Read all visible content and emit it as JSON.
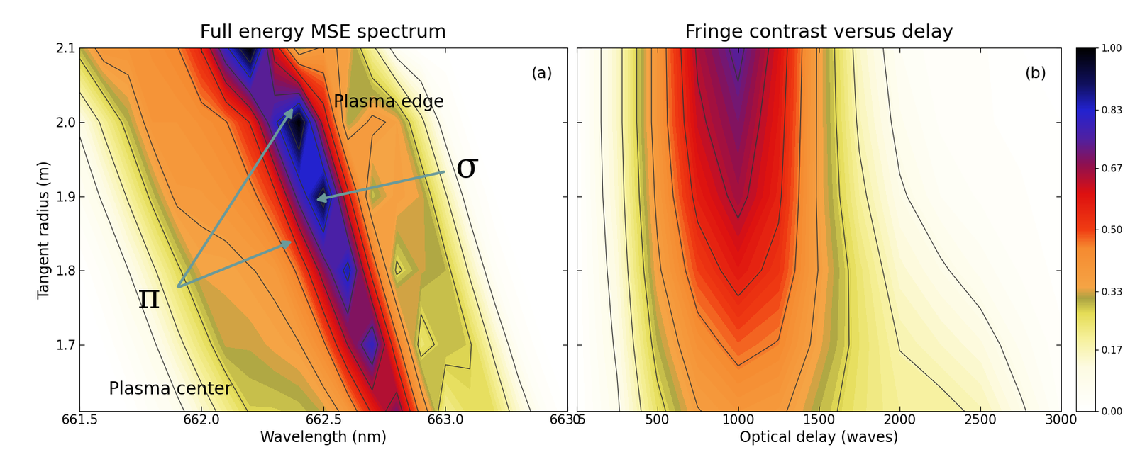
{
  "chart_data": [
    {
      "type": "contour",
      "title": "Full energy MSE spectrum",
      "panel_label": "(a)",
      "x_label": "Wavelength (nm)",
      "y_label": "Tangent radius (m)",
      "x": [
        661.5,
        661.6,
        661.7,
        661.8,
        661.9,
        662.0,
        662.1,
        662.2,
        662.3,
        662.4,
        662.5,
        662.6,
        662.7,
        662.8,
        662.9,
        663.0,
        663.1,
        663.2,
        663.3,
        663.4,
        663.5
      ],
      "y": [
        1.61,
        1.7,
        1.8,
        1.9,
        2.0,
        2.1
      ],
      "cells": [
        [
          0,
          0,
          0,
          0.04,
          0.07,
          0.14,
          0.21,
          0.28,
          0.28,
          0.29,
          0.32,
          0.39,
          0.56,
          0.7,
          0.42,
          0.21,
          0.26,
          0.25,
          0.14,
          0.04,
          0
        ],
        [
          0,
          0,
          0.04,
          0.08,
          0.16,
          0.24,
          0.32,
          0.32,
          0.34,
          0.36,
          0.44,
          0.64,
          0.8,
          0.48,
          0.24,
          0.3,
          0.28,
          0.16,
          0.04,
          0,
          0
        ],
        [
          0,
          0.04,
          0.09,
          0.17,
          0.26,
          0.34,
          0.34,
          0.36,
          0.38,
          0.47,
          0.68,
          0.85,
          0.51,
          0.26,
          0.32,
          0.3,
          0.17,
          0.04,
          0,
          0,
          0
        ],
        [
          0.05,
          0.1,
          0.19,
          0.29,
          0.38,
          0.38,
          0.4,
          0.43,
          0.52,
          0.76,
          0.95,
          0.57,
          0.29,
          0.36,
          0.33,
          0.19,
          0.05,
          0,
          0,
          0,
          0
        ],
        [
          0.1,
          0.2,
          0.3,
          0.4,
          0.4,
          0.42,
          0.45,
          0.55,
          0.8,
          1.0,
          0.6,
          0.3,
          0.38,
          0.35,
          0.2,
          0.05,
          0,
          0,
          0,
          0,
          0
        ],
        [
          0.3,
          0.4,
          0.4,
          0.42,
          0.45,
          0.55,
          0.8,
          1.0,
          0.6,
          0.3,
          0.38,
          0.35,
          0.2,
          0.05,
          0,
          0,
          0,
          0,
          0,
          0,
          0
        ]
      ],
      "xlim": [
        661.5,
        663.5
      ],
      "xticks": [
        661.5,
        {
          "value": 662.0,
          "label": "662.0"
        },
        662.5,
        {
          "value": 663.0,
          "label": "663.0"
        },
        663.5
      ],
      "ylim": [
        1.61,
        2.1
      ],
      "yticks": [
        1.7,
        1.8,
        1.9,
        {
          "value": 2.0,
          "label": "2.0"
        },
        2.1
      ],
      "annotations": [
        "Plasma edge",
        "σ",
        "π",
        "Plasma center"
      ]
    },
    {
      "type": "contour",
      "title": "Fringe contrast versus delay",
      "panel_label": "(b)",
      "x_label": "Optical delay (waves)",
      "x": [
        0,
        250,
        500,
        750,
        1000,
        1250,
        1500,
        1750,
        2000,
        2250,
        2500,
        2750,
        3000
      ],
      "y": [
        1.61,
        1.7,
        1.8,
        1.9,
        2.0,
        2.1
      ],
      "cells": [
        [
          0,
          0.08,
          0.25,
          0.36,
          0.4,
          0.38,
          0.3,
          0.24,
          0.2,
          0.2,
          0.17,
          0.1,
          0.03
        ],
        [
          0,
          0.1,
          0.3,
          0.42,
          0.48,
          0.45,
          0.34,
          0.25,
          0.18,
          0.15,
          0.12,
          0.06,
          0.02
        ],
        [
          0,
          0.12,
          0.35,
          0.5,
          0.58,
          0.52,
          0.36,
          0.24,
          0.14,
          0.1,
          0.06,
          0.03,
          0.01
        ],
        [
          0,
          0.14,
          0.38,
          0.57,
          0.66,
          0.56,
          0.35,
          0.2,
          0.1,
          0.05,
          0.03,
          0.02,
          0
        ],
        [
          0,
          0.15,
          0.4,
          0.62,
          0.7,
          0.58,
          0.35,
          0.17,
          0.07,
          0.03,
          0.02,
          0.01,
          0
        ],
        [
          0,
          0.15,
          0.4,
          0.65,
          0.75,
          0.6,
          0.35,
          0.15,
          0.05,
          0.02,
          0.02,
          0,
          0
        ]
      ],
      "xlim": [
        0,
        3000
      ],
      "xticks": [
        0,
        500,
        1000,
        1500,
        2000,
        2500,
        3000
      ],
      "ylim": [
        1.61,
        2.1
      ],
      "yticks": [
        1.7,
        1.8,
        1.9,
        {
          "value": 2.0,
          "label": "2.0"
        },
        2.1
      ],
      "tick_labels": "x",
      "colorbar_range": [
        0,
        1
      ],
      "colorbar_ticks": [
        {
          "value": 0,
          "label": "0.00"
        },
        0.17,
        0.33,
        {
          "value": 0.5,
          "label": "0.50"
        },
        0.67,
        0.83,
        {
          "value": 1,
          "label": "1.00"
        }
      ]
    }
  ]
}
